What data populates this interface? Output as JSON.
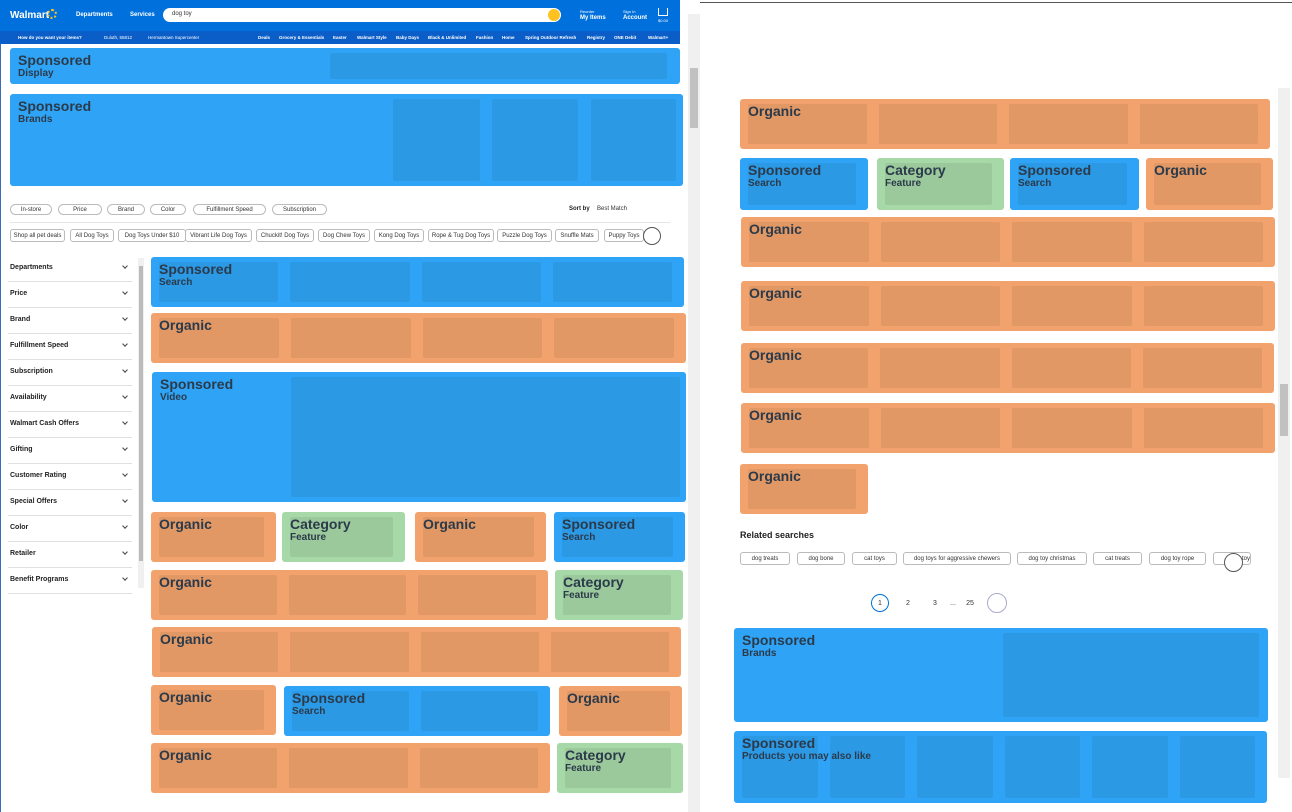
{
  "header": {
    "logo": "Walmart",
    "departments": "Departments",
    "services": "Services",
    "search": "dog toy",
    "reorder": "Reorder",
    "my_items": "My Items",
    "sign_in": "Sign In",
    "account": "Account",
    "cart": "$0.00"
  },
  "subheader": {
    "delivery": "How do you want your items?",
    "zip": "Duluth, 55812",
    "store": "Hermantown Supercenter",
    "nav": [
      "Deals",
      "Grocery & Essentials",
      "Easter",
      "Walmart Style",
      "Baby Days",
      "Black & Unlimited",
      "Fashion",
      "Home",
      "Spring Outdoor Refresh",
      "Registry",
      "ONE Debit",
      "Walmart+"
    ]
  },
  "filters": {
    "pills": [
      "In-store",
      "Price",
      "Brand",
      "Color",
      "Fulfillment Speed",
      "Subscription"
    ],
    "sort_label": "Sort by",
    "sort_value": "Best Match"
  },
  "chips": [
    "Shop all pet deals",
    "All Dog Toys",
    "Dog Toys Under $10",
    "Vibrant Life Dog Toys",
    "Chuckit! Dog Toys",
    "Dog Chew Toys",
    "Kong Dog Toys",
    "Rope & Tug Dog Toys",
    "Puzzle Dog Toys",
    "Snuffle Mats",
    "Puppy Toys"
  ],
  "sidebar": [
    "Departments",
    "Price",
    "Brand",
    "Fulfillment Speed",
    "Subscription",
    "Availability",
    "Walmart Cash Offers",
    "Gifting",
    "Customer Rating",
    "Special Offers",
    "Color",
    "Retailer",
    "Benefit Programs"
  ],
  "blocks": [
    {
      "label": "Sponsored",
      "sub": "Display",
      "color": "#2fa4f6"
    },
    {
      "label": "Sponsored",
      "sub": "Brands",
      "color": "#2fa4f6"
    },
    {
      "label": "Sponsored",
      "sub": "Search",
      "color": "#2fa4f6"
    },
    {
      "label": "Organic",
      "color": "#f2a36d"
    },
    {
      "label": "Sponsored",
      "sub": "Video",
      "color": "#2fa4f6"
    },
    {
      "label": "Organic",
      "color": "#f2a36d"
    },
    {
      "label": "Category",
      "sub": "Feature",
      "color": "#a7d8a8"
    },
    {
      "label": "Organic",
      "color": "#f2a36d"
    },
    {
      "label": "Sponsored",
      "sub": "Search",
      "color": "#2fa4f6"
    },
    {
      "label": "Organic",
      "color": "#f2a36d"
    },
    {
      "label": "Category",
      "sub": "Feature",
      "color": "#a7d8a8"
    },
    {
      "label": "Organic",
      "color": "#f2a36d"
    },
    {
      "label": "Organic",
      "color": "#f2a36d"
    },
    {
      "label": "Sponsored",
      "sub": "Search",
      "color": "#2fa4f6"
    },
    {
      "label": "Organic",
      "color": "#f2a36d"
    },
    {
      "label": "Organic",
      "color": "#f2a36d"
    },
    {
      "label": "Category",
      "sub": "Feature",
      "color": "#a7d8a8"
    },
    {
      "label": "Organic",
      "color": "#f2a36d"
    },
    {
      "label": "Sponsored",
      "sub": "Search",
      "color": "#2fa4f6"
    },
    {
      "label": "Category",
      "sub": "Feature",
      "color": "#a7d8a8"
    },
    {
      "label": "Sponsored",
      "sub": "Search",
      "color": "#2fa4f6"
    },
    {
      "label": "Organic",
      "color": "#f2a36d"
    },
    {
      "label": "Organic",
      "color": "#f2a36d"
    },
    {
      "label": "Organic",
      "color": "#f2a36d"
    },
    {
      "label": "Organic",
      "color": "#f2a36d"
    },
    {
      "label": "Organic",
      "color": "#f2a36d"
    },
    {
      "label": "Organic",
      "color": "#f2a36d"
    },
    {
      "label": "Sponsored",
      "sub": "Brands",
      "color": "#2fa4f6"
    },
    {
      "label": "Sponsored",
      "sub": "Products you may also like",
      "color": "#2fa4f6"
    }
  ],
  "related": {
    "title": "Related searches",
    "chips": [
      "dog treats",
      "dog bone",
      "cat toys",
      "dog toys for aggressive chewers",
      "dog toy christmas",
      "cat treats",
      "dog toy rope",
      "dog toy"
    ]
  },
  "pagination": [
    "1",
    "2",
    "3",
    "...",
    "25"
  ]
}
